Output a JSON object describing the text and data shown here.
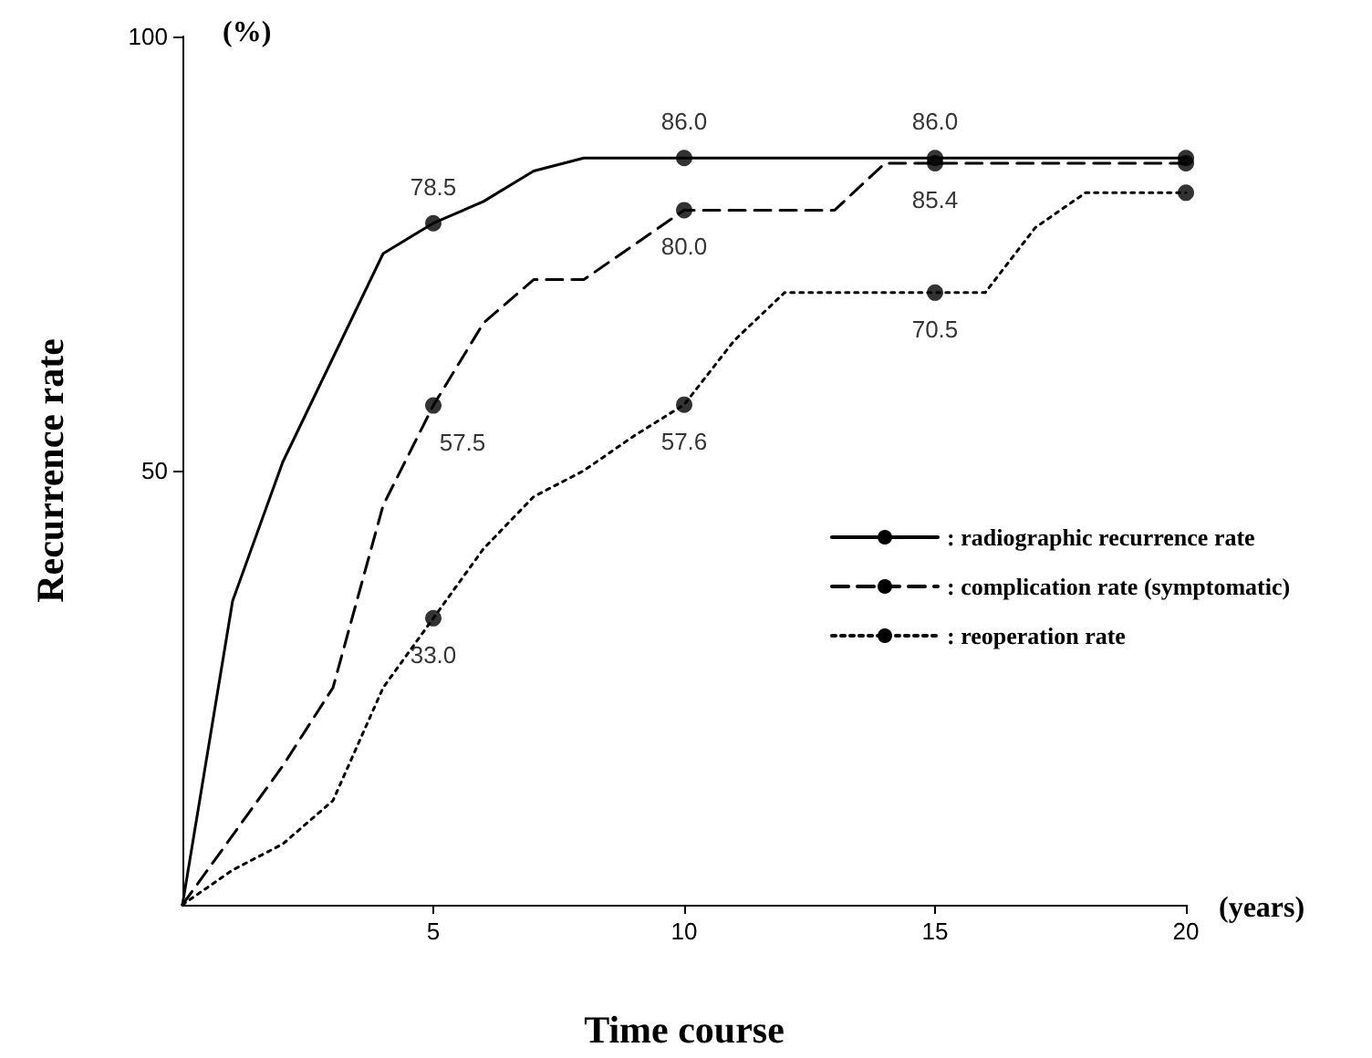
{
  "chart_data": {
    "type": "line",
    "xlabel": "Time course",
    "ylabel": "Recurrence rate",
    "annotations": [
      "(%)",
      "(years)"
    ],
    "xlim": [
      0,
      20
    ],
    "xticks": [
      5,
      10,
      15,
      20
    ],
    "ylim": [
      0,
      100
    ],
    "yticks": [
      50,
      100
    ],
    "grid": false,
    "legend": "right",
    "series": [
      {
        "name": ": radiographic recurrence rate",
        "color": "#000000",
        "line_style": "solid",
        "marker": "none",
        "x": [
          0,
          1,
          2,
          3,
          4,
          5,
          6,
          7,
          8,
          10,
          15,
          20
        ],
        "values": [
          0,
          35,
          51,
          63,
          75,
          78.5,
          81,
          84.5,
          86,
          86.0,
          86.0,
          86
        ]
      },
      {
        "name": ": complication rate (symptomatic)",
        "color": "#000000",
        "line_style": "dashed",
        "marker": "none",
        "x": [
          0,
          1,
          2,
          3,
          4,
          5,
          6,
          7,
          8,
          9,
          10,
          13,
          14,
          15,
          20
        ],
        "values": [
          0,
          8,
          16,
          25,
          46,
          57.5,
          67,
          72,
          72,
          76,
          80.0,
          80,
          85.4,
          85.4,
          85.4
        ]
      },
      {
        "name": ": reoperation rate",
        "color": "#000000",
        "line_style": "dotted",
        "marker": "none",
        "x": [
          0,
          1,
          2,
          3,
          4,
          5,
          6,
          7,
          8,
          9,
          10,
          11,
          12,
          15,
          16,
          17,
          18,
          20
        ],
        "values": [
          0,
          4,
          7,
          12,
          25,
          33.0,
          41,
          47,
          50,
          54,
          57.6,
          65,
          70.5,
          70.5,
          70.5,
          78,
          82,
          82
        ]
      },
      {
        "type": "scatter",
        "color": "#000000",
        "marker": "circle",
        "x": [
          5,
          10,
          15,
          20
        ],
        "values": [
          78.5,
          86.0,
          86.0,
          86
        ],
        "value_labels": [
          "78.5",
          "86.0",
          "86.0",
          null
        ]
      },
      {
        "type": "scatter",
        "color": "#000000",
        "marker": "circle",
        "x": [
          5,
          10,
          15,
          20
        ],
        "values": [
          57.5,
          80.0,
          85.4,
          85.4
        ],
        "value_labels": [
          "57.5",
          "80.0",
          "85.4",
          null
        ]
      },
      {
        "type": "scatter",
        "color": "#000000",
        "marker": "circle",
        "x": [
          5,
          10,
          15,
          20
        ],
        "values": [
          33.0,
          57.6,
          70.5,
          82
        ],
        "value_labels": [
          "33.0",
          "57.6",
          "70.5",
          null
        ]
      }
    ]
  }
}
